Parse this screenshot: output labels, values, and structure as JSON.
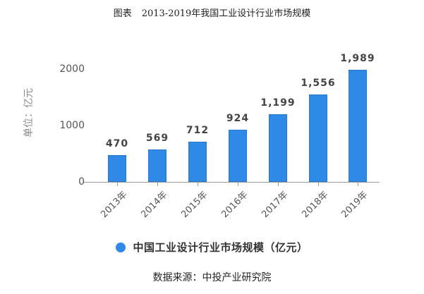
{
  "header": {
    "label": "图表",
    "title": "2013-2019年我国工业设计行业市场规模"
  },
  "axis": {
    "ylabel": "单位：亿元",
    "yticks": [
      "0",
      "1000",
      "2000"
    ]
  },
  "legend": {
    "label": "中国工业设计行业市场规模（亿元）",
    "color": "#2e8ae6"
  },
  "source": "数据来源：中投产业研究院",
  "chart_data": {
    "type": "bar",
    "title": "2013-2019年我国工业设计行业市场规模",
    "categories": [
      "2013年",
      "2014年",
      "2015年",
      "2016年",
      "2017年",
      "2018年",
      "2019年"
    ],
    "series": [
      {
        "name": "中国工业设计行业市场规模（亿元）",
        "values": [
          470,
          569,
          712,
          924,
          1199,
          1556,
          1989
        ]
      }
    ],
    "value_labels": [
      "470",
      "569",
      "712",
      "924",
      "1,199",
      "1,556",
      "1,989"
    ],
    "xlabel": "",
    "ylabel": "单位：亿元",
    "ylim": [
      0,
      2000
    ],
    "yticks": [
      0,
      1000,
      2000
    ],
    "grid": false,
    "legend_position": "bottom",
    "bar_color": "#2e8ae6",
    "source": "数据来源：中投产业研究院"
  }
}
